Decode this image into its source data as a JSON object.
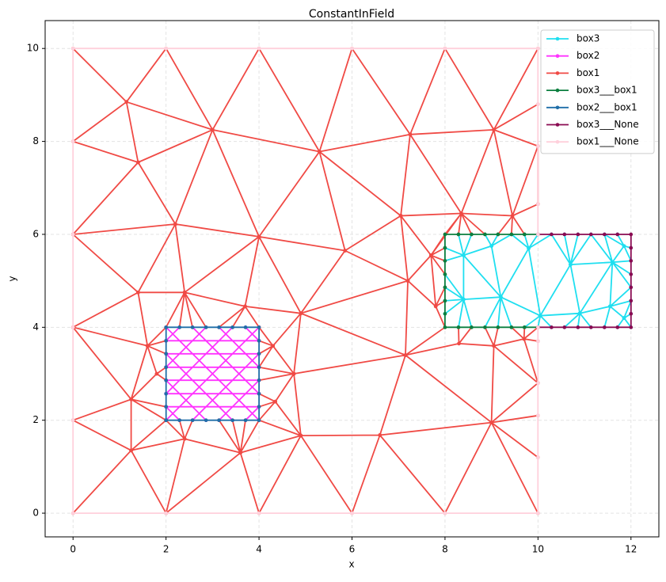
{
  "chart_data": {
    "type": "line",
    "title": "ConstantInField",
    "x_label": "x",
    "y_label": "y",
    "xlim": [
      -0.6,
      12.6
    ],
    "ylim": [
      -0.51,
      10.6
    ],
    "xticks": [
      0,
      2,
      4,
      6,
      8,
      10,
      12
    ],
    "yticks": [
      0,
      2,
      4,
      6,
      8,
      10
    ],
    "grid": true,
    "legend": "upper right",
    "series": [
      {
        "name": "box3",
        "color": "#1fdff0",
        "x": [
          8,
          8.4,
          8.29,
          null,
          8.57,
          8.4,
          9.0,
          8.86,
          null,
          9.14,
          9.0,
          9.43,
          9.8,
          9.71,
          null,
          10,
          9.8,
          10.29,
          10.7,
          10.57,
          null,
          10.86,
          10.7,
          11.14,
          11.6,
          11.43,
          11.85,
          11.71,
          null,
          8,
          8.4,
          8.4,
          8,
          null,
          8,
          8.4,
          8,
          null,
          8,
          8.4,
          8.29,
          null,
          8.57,
          8.4,
          9.2,
          8.4,
          null,
          9.0,
          9.2,
          9.8,
          null,
          8.86,
          9.2,
          9.14,
          null,
          9.43,
          9.2,
          10.05,
          9.71,
          null,
          10,
          10.05,
          10.29,
          null,
          9.8,
          10.05,
          10.7,
          10.9,
          10.05,
          null,
          10.57,
          10.9,
          10.86,
          null,
          11.14,
          10.9,
          11.6,
          10.7,
          null,
          10.9,
          11.55,
          11.6,
          11.85,
          12,
          null,
          11.43,
          11.55,
          11.85,
          11.71,
          null,
          12,
          11.85,
          12,
          null,
          11.85,
          12,
          11.55,
          12,
          11.6,
          12,
          null,
          11.6,
          12,
          11.85
        ],
        "y": [
          5.71,
          5.55,
          6,
          null,
          6,
          5.55,
          5.75,
          6,
          null,
          6,
          5.75,
          6,
          5.7,
          6,
          null,
          6,
          5.7,
          6,
          5.35,
          6,
          null,
          6,
          5.35,
          6,
          5.4,
          6,
          5.75,
          6,
          null,
          5.43,
          5.55,
          4.6,
          5.14,
          null,
          4.86,
          4.6,
          4.57,
          null,
          4.29,
          4.6,
          4,
          null,
          4,
          4.6,
          4.65,
          5.55,
          null,
          5.75,
          4.65,
          5.7,
          null,
          4,
          4.65,
          4,
          null,
          4,
          4.65,
          4.25,
          4,
          null,
          4,
          4.25,
          4,
          null,
          5.7,
          4.25,
          5.35,
          4.3,
          4.25,
          null,
          4,
          4.3,
          4,
          null,
          4,
          4.3,
          5.4,
          5.35,
          null,
          4.3,
          4.45,
          5.4,
          5.75,
          5.71,
          null,
          4,
          4.45,
          4.2,
          4,
          null,
          4,
          4.2,
          4.29,
          null,
          4.2,
          4.57,
          4.45,
          4.86,
          5.4,
          5.14,
          null,
          5.4,
          5.43,
          5.75
        ]
      },
      {
        "name": "box2",
        "color": "#ff33ff",
        "x": [
          2,
          4,
          null,
          2,
          4,
          null,
          2,
          4,
          null,
          2,
          4,
          null,
          2,
          4,
          null,
          2,
          4,
          null,
          3.71,
          4,
          null,
          3.14,
          4,
          null,
          2.57,
          4,
          null,
          2,
          4,
          null,
          2,
          3.43,
          null,
          2,
          2.86,
          null,
          2,
          2.29,
          null,
          2,
          2.29,
          null,
          2,
          2.86,
          null,
          2,
          3.43,
          null,
          2,
          4,
          null,
          2.57,
          4,
          null,
          3.14,
          4,
          null,
          3.71,
          4
        ],
        "y": [
          2.29,
          2.29,
          null,
          2.57,
          2.57,
          null,
          2.86,
          2.86,
          null,
          3.14,
          3.14,
          null,
          3.43,
          3.43,
          null,
          3.71,
          3.71,
          null,
          2,
          2.29,
          null,
          2,
          2.86,
          null,
          2,
          3.43,
          null,
          2,
          4,
          null,
          2.57,
          4,
          null,
          3.14,
          4,
          null,
          3.71,
          4,
          null,
          2.29,
          2,
          null,
          2.86,
          2,
          null,
          3.43,
          2,
          null,
          4,
          2,
          null,
          4,
          2.57,
          null,
          4,
          3.14,
          null,
          4,
          3.71
        ]
      },
      {
        "name": "box1",
        "color": "#f04a45",
        "x": [
          0,
          1.15,
          2,
          3.0,
          4,
          5.3,
          6,
          7.25,
          8,
          9.05,
          10,
          null,
          0,
          1.15,
          3.0,
          5.3,
          7.25,
          9.05,
          10,
          null,
          1.15,
          1.4,
          0,
          null,
          0,
          1.4,
          3.0,
          2.2,
          1.4,
          null,
          0,
          2.2,
          4.0,
          3.0,
          null,
          4.0,
          5.3,
          5.85,
          4.0,
          null,
          5.3,
          7.05,
          7.25,
          8.35,
          9.05,
          9.45,
          10,
          9.05,
          null,
          10,
          10,
          9.45,
          8.35,
          7.05,
          5.85,
          null,
          10,
          9.45,
          9.71,
          null,
          9.14,
          9.45,
          9.43,
          null,
          8.29,
          8.35,
          8.57,
          null,
          8.86,
          8.35,
          7.7,
          7.05,
          null,
          7.7,
          8,
          8.35,
          null,
          0,
          1.4,
          2.2,
          2.4,
          4.0,
          3.7,
          2.4,
          1.4,
          0,
          null,
          4.0,
          4.9,
          5.85,
          7.2,
          7.05,
          null,
          4.9,
          7.2,
          7.7,
          8,
          null,
          7.7,
          8,
          null,
          8,
          7.7,
          7.8,
          7.2,
          null,
          8,
          7.8,
          8,
          7.15,
          7.2,
          null,
          7.8,
          8,
          null,
          4.9,
          7.15,
          8.3,
          9.05,
          9.7,
          10,
          null,
          8.29,
          8.3,
          8.57,
          null,
          8.86,
          9.05,
          9.14,
          null,
          9.43,
          9.7,
          9.71,
          null,
          10,
          9.7,
          null,
          4.75,
          7.15,
          6.6,
          4.9,
          4.75,
          4.9,
          4.3,
          4,
          null,
          3.43,
          3.7,
          4.9,
          null,
          4,
          3.7,
          null,
          2.4,
          2,
          1.6,
          1.4,
          null,
          2.29,
          2.4,
          2.57,
          null,
          2.86,
          2.4,
          null,
          3.14,
          3.7,
          null,
          0,
          1.6,
          2,
          null,
          1.6,
          2,
          null,
          1.6,
          1.8,
          2,
          null,
          2,
          1.8,
          1.25,
          1.6,
          null,
          0,
          1.25,
          0,
          null,
          2,
          1.25,
          2,
          null,
          2,
          1.25,
          1.25,
          null,
          0,
          1.25,
          0,
          null,
          1.25,
          2,
          2.4,
          1.25,
          null,
          2,
          2.4,
          2.29,
          null,
          2.4,
          3.6,
          2,
          null,
          3.14,
          3.6,
          3.43,
          null,
          3.71,
          3.6,
          4,
          4.9,
          3.6,
          4,
          4.9,
          6,
          6.6,
          8,
          9.0,
          10,
          null,
          4,
          4.35,
          4.9,
          null,
          4,
          4.35,
          4,
          null,
          4.35,
          4.75,
          4.3,
          4,
          null,
          4,
          4.75,
          4,
          4.3,
          4,
          null,
          6.6,
          9.0,
          7.15,
          null,
          10,
          9.0,
          10,
          null,
          10,
          9.0,
          9.05,
          10,
          9.7,
          null,
          2.4,
          2.57
        ],
        "y": [
          10,
          8.85,
          10,
          8.25,
          10,
          7.78,
          10,
          8.15,
          10,
          8.25,
          10,
          null,
          8,
          8.85,
          8.25,
          7.78,
          8.15,
          8.25,
          8.8,
          null,
          8.85,
          7.55,
          8,
          null,
          6,
          7.55,
          8.25,
          6.22,
          7.55,
          null,
          6,
          6.22,
          5.95,
          8.25,
          null,
          5.95,
          7.78,
          5.65,
          5.95,
          null,
          7.78,
          6.4,
          8.15,
          6.45,
          8.25,
          6.4,
          7.9,
          8.25,
          null,
          7.9,
          6.65,
          6.4,
          6.45,
          6.4,
          5.65,
          null,
          6.65,
          6.4,
          6,
          null,
          6,
          6.4,
          6,
          null,
          6,
          6.45,
          6,
          null,
          6,
          6.45,
          5.55,
          6.4,
          null,
          5.55,
          6,
          6.45,
          null,
          6,
          4.75,
          6.22,
          4.75,
          5.95,
          4.45,
          4.75,
          4.75,
          4,
          null,
          5.95,
          4.3,
          5.65,
          5.0,
          6.4,
          null,
          4.3,
          5.0,
          5.55,
          5.71,
          null,
          5.55,
          5.43,
          null,
          5.14,
          5.55,
          4.45,
          5.0,
          null,
          4.57,
          4.45,
          4,
          3.4,
          5.0,
          null,
          4.45,
          4.86,
          null,
          4.3,
          3.4,
          3.65,
          3.6,
          3.75,
          3.7,
          null,
          4,
          3.65,
          4,
          null,
          4,
          3.6,
          4,
          null,
          4,
          3.75,
          4,
          null,
          4,
          3.75,
          null,
          3.0,
          3.4,
          1.68,
          1.67,
          3.0,
          4.3,
          3.6,
          4,
          null,
          4,
          4.45,
          4.3,
          null,
          4,
          4.45,
          null,
          4.75,
          4,
          3.6,
          4.75,
          null,
          4,
          4.75,
          4,
          null,
          4,
          4.75,
          null,
          4,
          4.45,
          null,
          4,
          3.6,
          3.71,
          null,
          3.6,
          3.43,
          null,
          3.6,
          3.0,
          3.14,
          null,
          2.86,
          3.0,
          2.45,
          3.6,
          null,
          4,
          2.45,
          2,
          null,
          2.29,
          2.45,
          2,
          null,
          2,
          1.35,
          2.45,
          null,
          2,
          1.35,
          0,
          null,
          1.35,
          0,
          1.6,
          1.35,
          null,
          2,
          1.6,
          2,
          null,
          1.6,
          1.3,
          0,
          null,
          2,
          1.3,
          2,
          null,
          2,
          1.3,
          2,
          1.67,
          1.3,
          0,
          1.67,
          0,
          1.68,
          0,
          1.95,
          0,
          null,
          2,
          2.4,
          1.67,
          null,
          2.29,
          2.4,
          2.57,
          null,
          2.4,
          3.0,
          3.6,
          3.71,
          null,
          2.86,
          3.0,
          3.14,
          3.6,
          3.43,
          null,
          1.68,
          1.95,
          3.4,
          null,
          1.2,
          1.95,
          2.1,
          null,
          2.8,
          1.95,
          3.6,
          2.8,
          3.75,
          null,
          1.6,
          2
        ]
      },
      {
        "name": "box3___box1",
        "color": "#0b7f3f",
        "x": [
          10,
          9.71,
          9.43,
          9.14,
          8.86,
          8.57,
          8.29,
          8,
          8,
          8,
          8,
          8,
          8,
          8,
          8,
          8.29,
          8.57,
          8.86,
          9.14,
          9.43,
          9.71,
          10
        ],
        "y": [
          6,
          6,
          6,
          6,
          6,
          6,
          6,
          6,
          5.71,
          5.43,
          5.14,
          4.86,
          4.57,
          4.29,
          4,
          4,
          4,
          4,
          4,
          4,
          4,
          4
        ]
      },
      {
        "name": "box2___box1",
        "color": "#1f6ea8",
        "x": [
          2,
          2.29,
          2.57,
          2.86,
          3.14,
          3.43,
          3.71,
          4,
          4,
          4,
          4,
          4,
          4,
          4,
          4,
          3.71,
          3.43,
          3.14,
          2.86,
          2.57,
          2.29,
          2,
          2,
          2,
          2,
          2,
          2,
          2,
          2
        ],
        "y": [
          2,
          2,
          2,
          2,
          2,
          2,
          2,
          2,
          2.29,
          2.57,
          2.86,
          3.14,
          3.43,
          3.71,
          4,
          4,
          4,
          4,
          4,
          4,
          4,
          4,
          3.71,
          3.43,
          3.14,
          2.86,
          2.57,
          2.29,
          2
        ]
      },
      {
        "name": "box3___None",
        "color": "#8a0b52",
        "x": [
          10,
          10.29,
          10.57,
          10.86,
          11.14,
          11.43,
          11.71,
          12,
          12,
          12,
          12,
          12,
          12,
          12,
          12,
          11.71,
          11.43,
          11.14,
          10.86,
          10.57,
          10.29,
          10
        ],
        "y": [
          6,
          6,
          6,
          6,
          6,
          6,
          6,
          6,
          5.71,
          5.43,
          5.14,
          4.86,
          4.57,
          4.29,
          4,
          4,
          4,
          4,
          4,
          4,
          4,
          4
        ]
      },
      {
        "name": "box1___None",
        "color": "#ffd0dc",
        "x": [
          10,
          10,
          10,
          10,
          10,
          10,
          8,
          6,
          4,
          2,
          0,
          0,
          0,
          0,
          0,
          0,
          2,
          4,
          6,
          8,
          10,
          10,
          10,
          10,
          10
        ],
        "y": [
          4,
          3.7,
          2.8,
          2.1,
          1.2,
          0,
          0,
          0,
          0,
          0,
          0,
          2,
          4,
          6,
          8,
          10,
          10,
          10,
          10,
          10,
          10,
          8.8,
          7.9,
          6.65,
          6
        ]
      }
    ]
  }
}
